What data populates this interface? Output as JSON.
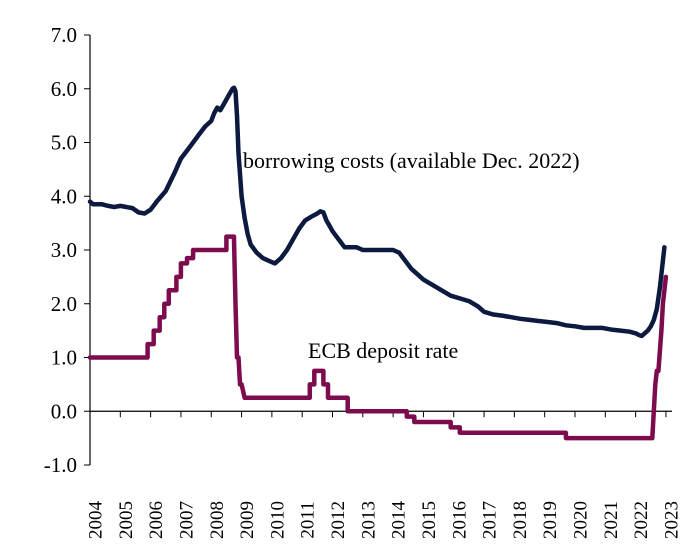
{
  "chart_data": {
    "type": "line",
    "title": "",
    "xlabel": "",
    "ylabel": "",
    "xlim": [
      2004,
      2023.2
    ],
    "ylim": [
      -1.0,
      7.0
    ],
    "grid": false,
    "legend": "none",
    "yticks": [
      -1.0,
      0.0,
      1.0,
      2.0,
      3.0,
      4.0,
      5.0,
      6.0,
      7.0
    ],
    "ytick_labels": [
      "-1.0",
      "0.0",
      "1.0",
      "2.0",
      "3.0",
      "4.0",
      "5.0",
      "6.0",
      "7.0"
    ],
    "xtick_labels": [
      "2004",
      "2005",
      "2006",
      "2007",
      "2008",
      "2009",
      "2010",
      "2011",
      "2012",
      "2013",
      "2014",
      "2015",
      "2016",
      "2017",
      "2018",
      "2019",
      "2020",
      "2021",
      "2022",
      "2023"
    ],
    "annotations": [
      {
        "text": "borrowing costs (available  Dec. 2022)",
        "series": "borrowing"
      },
      {
        "text": "ECB deposit rate",
        "series": "deposit"
      }
    ],
    "series": [
      {
        "key": "borrowing",
        "color": "#0c1a3f",
        "x": [
          2004.0,
          2004.1,
          2004.2,
          2004.4,
          2004.6,
          2004.8,
          2005.0,
          2005.2,
          2005.4,
          2005.6,
          2005.8,
          2006.0,
          2006.2,
          2006.5,
          2006.8,
          2007.0,
          2007.2,
          2007.4,
          2007.6,
          2007.8,
          2008.0,
          2008.1,
          2008.2,
          2008.3,
          2008.4,
          2008.5,
          2008.6,
          2008.7,
          2008.75,
          2008.8,
          2008.85,
          2008.9,
          2009.0,
          2009.1,
          2009.2,
          2009.3,
          2009.5,
          2009.7,
          2009.9,
          2010.1,
          2010.3,
          2010.5,
          2010.7,
          2010.9,
          2011.1,
          2011.3,
          2011.5,
          2011.6,
          2011.7,
          2011.8,
          2011.9,
          2012.0,
          2012.2,
          2012.4,
          2012.6,
          2012.8,
          2013.0,
          2013.3,
          2013.6,
          2013.8,
          2014.0,
          2014.2,
          2014.4,
          2014.6,
          2014.8,
          2015.0,
          2015.3,
          2015.6,
          2015.9,
          2016.2,
          2016.5,
          2016.8,
          2017.0,
          2017.3,
          2017.6,
          2017.9,
          2018.2,
          2018.5,
          2018.8,
          2019.1,
          2019.4,
          2019.7,
          2020.0,
          2020.3,
          2020.6,
          2020.9,
          2021.2,
          2021.5,
          2021.8,
          2022.0,
          2022.1,
          2022.2,
          2022.3,
          2022.4,
          2022.5,
          2022.6,
          2022.7,
          2022.8,
          2022.9,
          2022.95
        ],
        "y": [
          3.9,
          3.85,
          3.85,
          3.85,
          3.82,
          3.8,
          3.82,
          3.8,
          3.78,
          3.7,
          3.68,
          3.75,
          3.9,
          4.1,
          4.45,
          4.7,
          4.85,
          5.0,
          5.15,
          5.3,
          5.4,
          5.55,
          5.65,
          5.6,
          5.7,
          5.8,
          5.9,
          6.0,
          6.02,
          5.95,
          5.5,
          4.8,
          4.0,
          3.6,
          3.3,
          3.1,
          2.95,
          2.85,
          2.8,
          2.75,
          2.85,
          3.0,
          3.2,
          3.4,
          3.55,
          3.62,
          3.68,
          3.72,
          3.7,
          3.55,
          3.45,
          3.35,
          3.2,
          3.05,
          3.05,
          3.05,
          3.0,
          3.0,
          3.0,
          3.0,
          3.0,
          2.95,
          2.8,
          2.65,
          2.55,
          2.45,
          2.35,
          2.25,
          2.15,
          2.1,
          2.05,
          1.95,
          1.85,
          1.8,
          1.78,
          1.75,
          1.72,
          1.7,
          1.68,
          1.66,
          1.64,
          1.6,
          1.58,
          1.55,
          1.55,
          1.55,
          1.52,
          1.5,
          1.48,
          1.45,
          1.42,
          1.4,
          1.45,
          1.5,
          1.58,
          1.7,
          1.9,
          2.3,
          2.8,
          3.05
        ]
      },
      {
        "key": "deposit",
        "color": "#7d0c4f",
        "x": [
          2004.0,
          2005.9,
          2005.9,
          2006.1,
          2006.1,
          2006.3,
          2006.3,
          2006.45,
          2006.45,
          2006.6,
          2006.6,
          2006.85,
          2006.85,
          2007.0,
          2007.0,
          2007.2,
          2007.2,
          2007.4,
          2007.4,
          2007.5,
          2007.5,
          2008.5,
          2008.5,
          2008.75,
          2008.75,
          2008.8,
          2008.85,
          2008.9,
          2008.95,
          2009.0,
          2009.1,
          2009.15,
          2009.15,
          2009.3,
          2009.3,
          2010.0,
          2011.25,
          2011.25,
          2011.4,
          2011.4,
          2011.5,
          2011.7,
          2011.7,
          2011.85,
          2011.85,
          2012.5,
          2012.5,
          2014.45,
          2014.45,
          2014.7,
          2014.7,
          2015.9,
          2015.9,
          2016.2,
          2016.2,
          2019.7,
          2019.7,
          2022.5,
          2022.55,
          2022.6,
          2022.65,
          2022.7,
          2022.75,
          2022.85,
          2022.9,
          2023.0
        ],
        "y": [
          1.0,
          1.0,
          1.25,
          1.25,
          1.5,
          1.5,
          1.75,
          1.75,
          2.0,
          2.0,
          2.25,
          2.25,
          2.5,
          2.5,
          2.75,
          2.75,
          2.85,
          2.85,
          3.0,
          3.0,
          3.0,
          3.0,
          3.25,
          3.25,
          3.2,
          2.0,
          1.0,
          1.0,
          0.5,
          0.5,
          0.25,
          0.25,
          0.25,
          0.25,
          0.25,
          0.25,
          0.25,
          0.5,
          0.5,
          0.75,
          0.75,
          0.75,
          0.5,
          0.5,
          0.25,
          0.25,
          0.0,
          0.0,
          -0.1,
          -0.1,
          -0.2,
          -0.2,
          -0.3,
          -0.3,
          -0.4,
          -0.4,
          -0.5,
          -0.5,
          -0.5,
          0.0,
          0.5,
          0.75,
          0.75,
          1.5,
          2.0,
          2.5
        ]
      }
    ]
  }
}
